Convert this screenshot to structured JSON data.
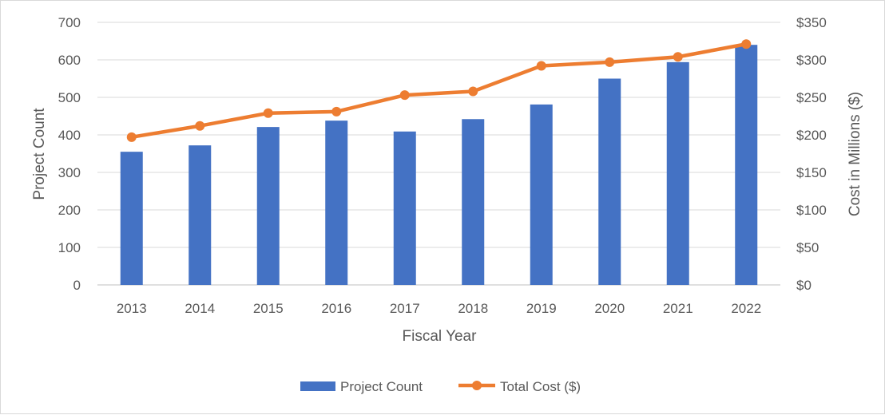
{
  "chart_data": {
    "type": "bar",
    "title": "",
    "xlabel": "Fiscal Year",
    "ylabel": "Project Count",
    "y2label": "Cost in Millions ($)",
    "categories": [
      "2013",
      "2014",
      "2015",
      "2016",
      "2017",
      "2018",
      "2019",
      "2020",
      "2021",
      "2022"
    ],
    "ylim": [
      0,
      700
    ],
    "y_ticks": [
      0,
      100,
      200,
      300,
      400,
      500,
      600,
      700
    ],
    "y_tick_labels": [
      "0",
      "100",
      "200",
      "300",
      "400",
      "500",
      "600",
      "700"
    ],
    "y2lim": [
      0,
      350
    ],
    "y2_ticks": [
      0,
      50,
      100,
      150,
      200,
      250,
      300,
      350
    ],
    "y2_tick_labels": [
      "$0",
      "$50",
      "$100",
      "$150",
      "$200",
      "$250",
      "$300",
      "$350"
    ],
    "grid": true,
    "legend_position": "bottom",
    "series": [
      {
        "name": "Project Count",
        "kind": "bar",
        "axis": "left",
        "color": "#4472c4",
        "values": [
          355,
          372,
          421,
          438,
          409,
          442,
          481,
          550,
          594,
          640
        ]
      },
      {
        "name": "Total Cost ($)",
        "kind": "line",
        "axis": "right",
        "color": "#ed7d31",
        "values": [
          197,
          212,
          229,
          231,
          253,
          258,
          292,
          297,
          304,
          321
        ]
      }
    ]
  }
}
